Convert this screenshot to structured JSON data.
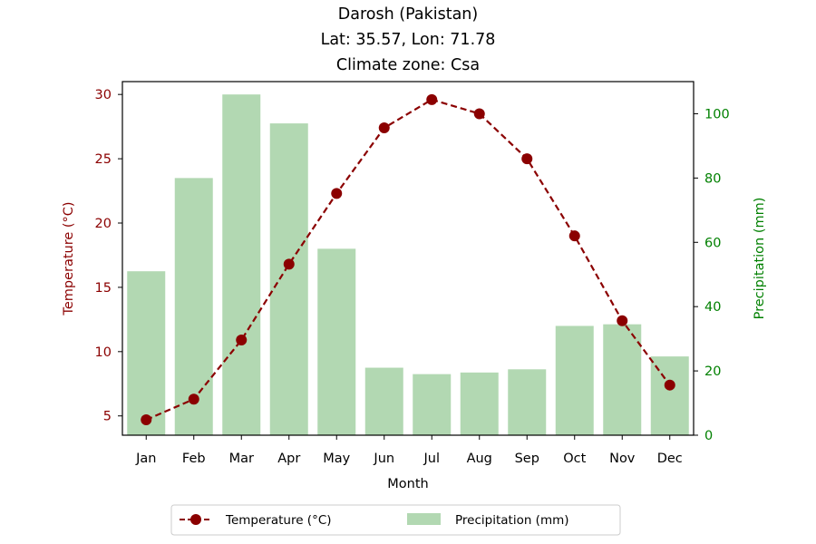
{
  "chart_data": {
    "type": "bar+line",
    "title_lines": [
      "Darosh (Pakistan)",
      "Lat: 35.57, Lon: 71.78",
      "Climate zone: Csa"
    ],
    "xlabel": "Month",
    "ylabel_left": "Temperature (°C)",
    "ylabel_right": "Precipitation (mm)",
    "categories": [
      "Jan",
      "Feb",
      "Mar",
      "Apr",
      "May",
      "Jun",
      "Jul",
      "Aug",
      "Sep",
      "Oct",
      "Nov",
      "Dec"
    ],
    "temperature": {
      "name": "Temperature (°C)",
      "values": [
        4.7,
        6.3,
        10.9,
        16.8,
        22.3,
        27.4,
        29.6,
        28.5,
        25.0,
        19.0,
        12.4,
        7.4
      ],
      "ylim": [
        3.5,
        31.0
      ],
      "yticks": [
        5,
        10,
        15,
        20,
        25,
        30
      ],
      "color": "#8b0000",
      "style": "dashed line with circle markers"
    },
    "precipitation": {
      "name": "Precipitation (mm)",
      "values": [
        51,
        80,
        106,
        97,
        58,
        21,
        19,
        19.5,
        20.5,
        34,
        34.5,
        24.5
      ],
      "ylim": [
        0,
        110
      ],
      "yticks": [
        0,
        20,
        40,
        60,
        80,
        100
      ],
      "color": "#b2d8b2"
    },
    "left_axis_color": "#8b0000",
    "right_axis_color": "#008000",
    "grid": false,
    "legend_placement": "bottom-center"
  }
}
